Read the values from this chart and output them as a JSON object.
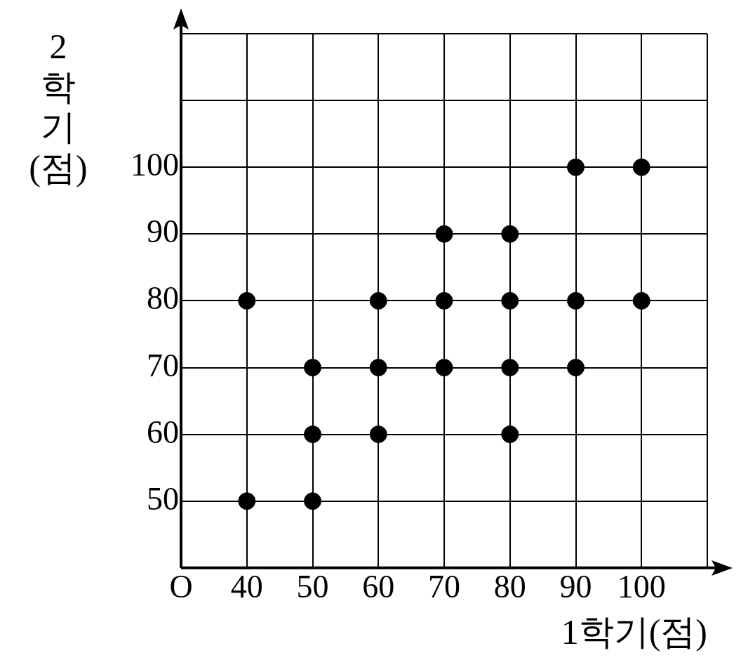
{
  "chart_data": {
    "type": "scatter",
    "xlabel": "1학기(점)",
    "ylabel": "2학기(점)",
    "x": [
      40,
      40,
      50,
      50,
      50,
      60,
      60,
      60,
      70,
      70,
      70,
      80,
      80,
      80,
      80,
      90,
      90,
      90,
      100,
      100
    ],
    "series": [
      {
        "color": "#000000",
        "values": [
          80,
          50,
          70,
          60,
          50,
          80,
          70,
          60,
          90,
          80,
          70,
          90,
          80,
          70,
          60,
          100,
          80,
          70,
          100,
          80
        ]
      }
    ],
    "xlim": [
      30,
      110
    ],
    "ylim": [
      40,
      120
    ],
    "xticks": [
      {
        "value": 30,
        "label": "O"
      },
      40,
      50,
      60,
      70,
      80,
      90,
      100,
      {
        "value": 110,
        "label": null
      }
    ],
    "yticks": [
      50,
      60,
      70,
      80,
      90,
      100,
      {
        "value": 110,
        "label": null
      },
      {
        "value": 120,
        "label": null
      }
    ],
    "grid": true,
    "marker": "circle",
    "legend": false
  }
}
